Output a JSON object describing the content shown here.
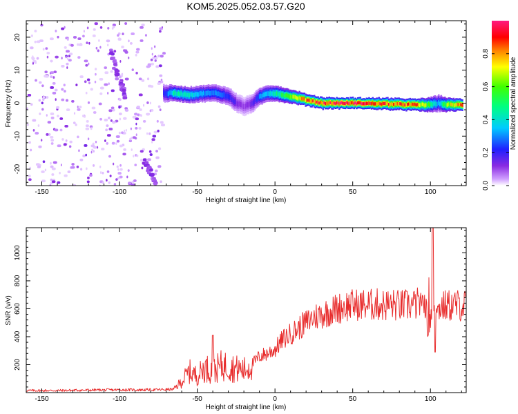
{
  "figure_title": "KOM5.2025.052.03.57.G20",
  "chart_data": [
    {
      "type": "heatmap",
      "title": "",
      "xlabel": "Height of straight line (km)",
      "ylabel": "Frequency (Hz)",
      "xlim": [
        -160,
        123
      ],
      "ylim": [
        -25,
        25
      ],
      "xticks": [
        -150,
        -100,
        -50,
        0,
        50,
        100
      ],
      "yticks": [
        -20,
        -10,
        0,
        10,
        20
      ],
      "grid": false,
      "colorbar": {
        "label": "Normalized spectral amplitude",
        "range": [
          0,
          1
        ],
        "ticks": [
          0.0,
          0.2,
          0.4,
          0.6,
          0.8
        ],
        "colormap": "purple-blue-cyan-green-yellow-red-magenta"
      },
      "ridge_frequency": {
        "x": [
          -72,
          -65,
          -55,
          -45,
          -38,
          -30,
          -25,
          -20,
          -15,
          -10,
          -5,
          0,
          10,
          20,
          30,
          50,
          70,
          90,
          100,
          105,
          110,
          120
        ],
        "y": [
          3,
          3,
          2.5,
          3,
          3,
          2,
          0,
          -1,
          0,
          2,
          3,
          3,
          2,
          1,
          0,
          0,
          -0.2,
          -0.5,
          -0.5,
          0,
          -0.5,
          -0.5
        ]
      },
      "ridge_amplitude": {
        "x": [
          -72,
          -65,
          -55,
          -45,
          -38,
          -30,
          -25,
          -20,
          -15,
          -10,
          -5,
          0,
          10,
          20,
          30,
          50,
          70,
          90,
          100,
          105,
          110,
          120
        ],
        "v": [
          0.2,
          0.45,
          0.4,
          0.3,
          0.3,
          0.25,
          0.15,
          0.1,
          0.15,
          0.3,
          0.35,
          0.45,
          0.6,
          0.85,
          0.9,
          0.95,
          0.9,
          0.85,
          0.55,
          0.3,
          0.65,
          0.85
        ]
      },
      "noise_region": {
        "xrange": [
          -160,
          -72
        ],
        "yrange": [
          -25,
          25
        ]
      },
      "streaks": [
        {
          "x": [
            -107,
            -102
          ],
          "y": [
            16,
            8
          ]
        },
        {
          "x": [
            -100,
            -98
          ],
          "y": [
            7,
            2
          ]
        },
        {
          "x": [
            -85,
            -78
          ],
          "y": [
            -17,
            -24
          ]
        }
      ]
    },
    {
      "type": "line",
      "title": "",
      "xlabel": "Height of straight line (km)",
      "ylabel": "SNR (v/v)",
      "xlim": [
        -160,
        123
      ],
      "ylim": [
        0,
        1180
      ],
      "xticks": [
        -150,
        -100,
        -50,
        0,
        50,
        100
      ],
      "yticks": [
        200,
        400,
        600,
        800,
        1000
      ],
      "grid": false,
      "color": "#e82d2d",
      "x": [
        -160,
        -140,
        -120,
        -100,
        -80,
        -70,
        -65,
        -60,
        -55,
        -50,
        -45,
        -40,
        -35,
        -30,
        -25,
        -20,
        -15,
        -10,
        -5,
        0,
        5,
        10,
        15,
        20,
        25,
        30,
        35,
        40,
        45,
        50,
        55,
        60,
        65,
        70,
        75,
        80,
        85,
        90,
        95,
        98,
        100,
        102,
        104,
        110,
        115,
        123
      ],
      "y": [
        15,
        15,
        18,
        20,
        20,
        22,
        25,
        80,
        150,
        120,
        180,
        150,
        190,
        190,
        170,
        160,
        200,
        260,
        280,
        310,
        380,
        420,
        460,
        500,
        540,
        560,
        580,
        600,
        620,
        625,
        630,
        625,
        630,
        625,
        630,
        620,
        625,
        630,
        650,
        600,
        630,
        620,
        610,
        620,
        625,
        625
      ]
    }
  ]
}
